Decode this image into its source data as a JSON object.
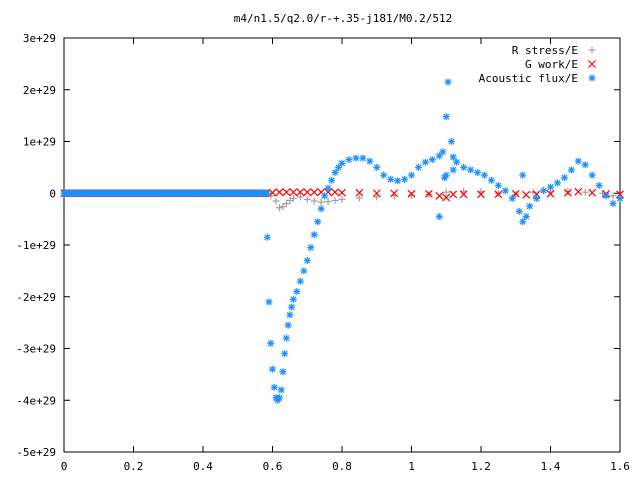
{
  "chart_data": {
    "type": "scatter",
    "title": "m4/n1.5/q2.0/r-+.35-j181/M0.2/512",
    "xlabel": "",
    "ylabel": "",
    "xlim": [
      0,
      1.6
    ],
    "ylim": [
      -5e+29,
      3e+29
    ],
    "grid": false,
    "legend_position": "top-right",
    "x_ticks": [
      {
        "value": 0,
        "label": "0"
      },
      {
        "value": 0.2,
        "label": "0.2"
      },
      {
        "value": 0.4,
        "label": "0.4"
      },
      {
        "value": 0.6,
        "label": "0.6"
      },
      {
        "value": 0.8,
        "label": "0.8"
      },
      {
        "value": 1.0,
        "label": "1"
      },
      {
        "value": 1.2,
        "label": "1.2"
      },
      {
        "value": 1.4,
        "label": "1.4"
      },
      {
        "value": 1.6,
        "label": "1.6"
      }
    ],
    "y_ticks": [
      {
        "value": 3e+29,
        "label": "3e+29"
      },
      {
        "value": 2e+29,
        "label": "2e+29"
      },
      {
        "value": 1e+29,
        "label": "1e+29"
      },
      {
        "value": 0,
        "label": "0"
      },
      {
        "value": -1e+29,
        "label": "-1e+29"
      },
      {
        "value": -2e+29,
        "label": "-2e+29"
      },
      {
        "value": -3e+29,
        "label": "-3e+29"
      },
      {
        "value": -4e+29,
        "label": "-4e+29"
      },
      {
        "value": -5e+29,
        "label": "-5e+29"
      }
    ],
    "series": [
      {
        "name": "R stress/E",
        "marker": "plus",
        "color": "#a0a0a0",
        "points": [
          [
            0.58,
            0.0
          ],
          [
            0.595,
            -5e+27
          ],
          [
            0.61,
            -1.5e+28
          ],
          [
            0.62,
            -2.8e+28
          ],
          [
            0.63,
            -2.6e+28
          ],
          [
            0.64,
            -2e+28
          ],
          [
            0.65,
            -1.4e+28
          ],
          [
            0.66,
            -1e+28
          ],
          [
            0.68,
            -7e+27
          ],
          [
            0.7,
            -1.2e+28
          ],
          [
            0.72,
            -1.5e+28
          ],
          [
            0.74,
            -1.7e+28
          ],
          [
            0.76,
            -1.6e+28
          ],
          [
            0.78,
            -1.4e+28
          ],
          [
            0.8,
            -1.2e+28
          ],
          [
            0.85,
            -9e+27
          ],
          [
            0.9,
            -7e+27
          ],
          [
            0.95,
            -5e+27
          ],
          [
            1.0,
            -4e+27
          ],
          [
            1.05,
            -2e+27
          ],
          [
            1.1,
            2e+27
          ],
          [
            1.15,
            4e+27
          ],
          [
            1.2,
            3e+27
          ],
          [
            1.25,
            0.0
          ],
          [
            1.3,
            -2e+27
          ],
          [
            1.35,
            2e+27
          ],
          [
            1.4,
            3e+27
          ],
          [
            1.45,
            3e+27
          ],
          [
            1.5,
            2e+27
          ],
          [
            1.55,
            0.0
          ],
          [
            1.58,
            -5e+27
          ],
          [
            1.6,
            -1e+28
          ]
        ]
      },
      {
        "name": "G work/E",
        "marker": "cross",
        "color": "#ff0000",
        "points": [
          [
            0.58,
            0.0
          ],
          [
            0.6,
            1e+27
          ],
          [
            0.62,
            2e+27
          ],
          [
            0.64,
            2e+27
          ],
          [
            0.66,
            2e+27
          ],
          [
            0.68,
            2e+27
          ],
          [
            0.7,
            2e+27
          ],
          [
            0.72,
            2e+27
          ],
          [
            0.74,
            2e+27
          ],
          [
            0.76,
            2e+27
          ],
          [
            0.78,
            2e+27
          ],
          [
            0.8,
            1e+27
          ],
          [
            0.85,
            1e+27
          ],
          [
            0.9,
            0.0
          ],
          [
            0.95,
            0.0
          ],
          [
            1.0,
            -1e+27
          ],
          [
            1.05,
            -1e+27
          ],
          [
            1.08,
            -5e+27
          ],
          [
            1.1,
            -8e+27
          ],
          [
            1.12,
            -2e+27
          ],
          [
            1.15,
            -2e+27
          ],
          [
            1.2,
            -2e+27
          ],
          [
            1.25,
            -2e+27
          ],
          [
            1.3,
            -1e+27
          ],
          [
            1.33,
            -3e+27
          ],
          [
            1.36,
            -2e+27
          ],
          [
            1.4,
            -1e+27
          ],
          [
            1.45,
            1e+27
          ],
          [
            1.48,
            3e+27
          ],
          [
            1.52,
            1e+27
          ],
          [
            1.56,
            -1e+27
          ],
          [
            1.6,
            -2e+27
          ]
        ]
      },
      {
        "name": "Acoustic flux/E",
        "marker": "star",
        "color": "#1e90ff",
        "points": [
          [
            0.585,
            -8.5e+28
          ],
          [
            0.59,
            -2.1e+29
          ],
          [
            0.595,
            -2.9e+29
          ],
          [
            0.6,
            -3.4e+29
          ],
          [
            0.605,
            -3.75e+29
          ],
          [
            0.61,
            -3.95e+29
          ],
          [
            0.615,
            -4e+29
          ],
          [
            0.62,
            -3.95e+29
          ],
          [
            0.625,
            -3.8e+29
          ],
          [
            0.63,
            -3.45e+29
          ],
          [
            0.635,
            -3.1e+29
          ],
          [
            0.64,
            -2.8e+29
          ],
          [
            0.645,
            -2.55e+29
          ],
          [
            0.65,
            -2.35e+29
          ],
          [
            0.655,
            -2.2e+29
          ],
          [
            0.66,
            -2.05e+29
          ],
          [
            0.67,
            -1.9e+29
          ],
          [
            0.68,
            -1.7e+29
          ],
          [
            0.69,
            -1.5e+29
          ],
          [
            0.7,
            -1.3e+29
          ],
          [
            0.71,
            -1.05e+29
          ],
          [
            0.72,
            -8e+28
          ],
          [
            0.73,
            -5.5e+28
          ],
          [
            0.74,
            -3e+28
          ],
          [
            0.75,
            -5e+27
          ],
          [
            0.76,
            1e+28
          ],
          [
            0.77,
            2.5e+28
          ],
          [
            0.78,
            4e+28
          ],
          [
            0.79,
            5e+28
          ],
          [
            0.8,
            5.8e+28
          ],
          [
            0.82,
            6.5e+28
          ],
          [
            0.84,
            6.8e+28
          ],
          [
            0.86,
            6.8e+28
          ],
          [
            0.88,
            6.2e+28
          ],
          [
            0.9,
            5e+28
          ],
          [
            0.92,
            3.5e+28
          ],
          [
            0.94,
            2.7e+28
          ],
          [
            0.96,
            2.4e+28
          ],
          [
            0.98,
            2.7e+28
          ],
          [
            1.0,
            3.5e+28
          ],
          [
            1.02,
            5e+28
          ],
          [
            1.04,
            6e+28
          ],
          [
            1.06,
            6.5e+28
          ],
          [
            1.08,
            7.2e+28
          ],
          [
            1.09,
            8e+28
          ],
          [
            1.1,
            1.48e+29
          ],
          [
            1.105,
            2.15e+29
          ],
          [
            1.115,
            1e+29
          ],
          [
            1.12,
            7e+28
          ],
          [
            1.13,
            6e+28
          ],
          [
            1.15,
            5e+28
          ],
          [
            1.17,
            4.5e+28
          ],
          [
            1.19,
            4e+28
          ],
          [
            1.21,
            3.5e+28
          ],
          [
            1.23,
            2.5e+28
          ],
          [
            1.25,
            1.5e+28
          ],
          [
            1.27,
            5e+27
          ],
          [
            1.29,
            -1e+28
          ],
          [
            1.31,
            -3.5e+28
          ],
          [
            1.32,
            -5.5e+28
          ],
          [
            1.33,
            -4.5e+28
          ],
          [
            1.34,
            -2.5e+28
          ],
          [
            1.36,
            -1e+28
          ],
          [
            1.38,
            5e+27
          ],
          [
            1.4,
            1.2e+28
          ],
          [
            1.42,
            2e+28
          ],
          [
            1.44,
            3e+28
          ],
          [
            1.46,
            4.5e+28
          ],
          [
            1.48,
            6.2e+28
          ],
          [
            1.5,
            5.5e+28
          ],
          [
            1.52,
            3.5e+28
          ],
          [
            1.54,
            1.5e+28
          ],
          [
            1.56,
            -5e+27
          ],
          [
            1.58,
            -2e+28
          ],
          [
            1.6,
            -1e+28
          ],
          [
            1.08,
            -4.5e+28
          ],
          [
            1.32,
            3.5e+28
          ],
          [
            1.1,
            3.5e+28
          ],
          [
            1.095,
            3e+28
          ],
          [
            1.12,
            4.5e+28
          ]
        ]
      }
    ]
  }
}
